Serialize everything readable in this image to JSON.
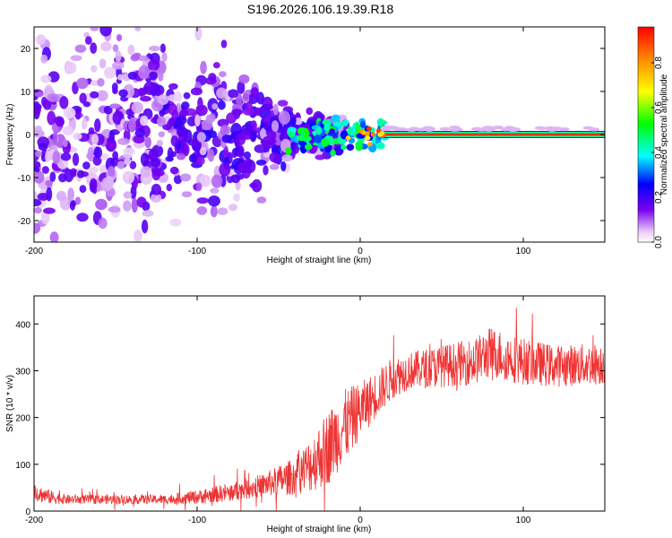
{
  "page_title": "S196.2026.106.19.39.R18",
  "colorbar": {
    "label": "Normalized spectral amplitude",
    "ticks": [
      "0.0",
      "0.2",
      "0.4",
      "0.6",
      "0.8"
    ],
    "tick_values": [
      0.0,
      0.2,
      0.4,
      0.6,
      0.8
    ],
    "range": [
      0.0,
      0.96
    ]
  },
  "chart_data": [
    {
      "type": "heatmap",
      "title": "",
      "xlabel": "Height of straight line (km)",
      "ylabel": "Frequency (Hz)",
      "xlim": [
        -200,
        150
      ],
      "ylim": [
        -25,
        25
      ],
      "x_ticks": [
        -200,
        -100,
        0,
        100
      ],
      "y_ticks": [
        -20,
        -10,
        0,
        10,
        20
      ],
      "x_tick_labels": [
        "-200",
        "-100",
        "0",
        "100"
      ],
      "y_tick_labels": [
        "-20",
        "-10",
        "0",
        "10",
        "20"
      ],
      "description_regions": [
        {
          "x_range": [
            -200,
            -60
          ],
          "freq_spread": 25,
          "amplitude": 0.15
        },
        {
          "x_range": [
            -60,
            15
          ],
          "freq_spread": 6,
          "amplitude": 0.35
        },
        {
          "x_range": [
            15,
            150
          ],
          "freq_center": 0,
          "freq_width": 1,
          "amplitude": 0.9
        }
      ]
    },
    {
      "type": "line",
      "title": "",
      "xlabel": "Height of straight line (km)",
      "ylabel": "SNR (10 * v/v)",
      "xlim": [
        -200,
        150
      ],
      "ylim": [
        0,
        460
      ],
      "x_ticks": [
        -200,
        -100,
        0,
        100
      ],
      "y_ticks": [
        0,
        100,
        200,
        300,
        400
      ],
      "x_tick_labels": [
        "-200",
        "-100",
        "0",
        "100"
      ],
      "y_tick_labels": [
        "0",
        "100",
        "200",
        "300",
        "400"
      ],
      "series": [
        {
          "name": "SNR",
          "color": "#ee3333",
          "x": [
            -200,
            -190,
            -180,
            -150,
            -120,
            -100,
            -80,
            -60,
            -40,
            -30,
            -20,
            -10,
            0,
            10,
            20,
            30,
            50,
            70,
            80,
            100,
            120,
            150
          ],
          "values": [
            40,
            30,
            25,
            25,
            25,
            30,
            40,
            55,
            75,
            100,
            135,
            180,
            215,
            250,
            285,
            300,
            310,
            320,
            340,
            320,
            310,
            315
          ],
          "noise_amplitude": [
            20,
            15,
            10,
            10,
            10,
            15,
            20,
            25,
            40,
            60,
            80,
            80,
            60,
            50,
            45,
            40,
            45,
            50,
            55,
            50,
            45,
            45
          ]
        }
      ]
    }
  ]
}
